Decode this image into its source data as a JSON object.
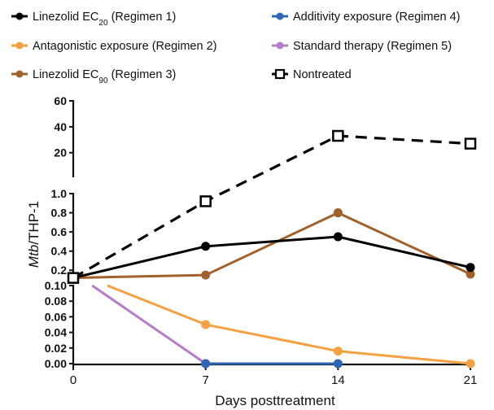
{
  "chart_data": {
    "type": "line",
    "xlabel": "Days posttreatment",
    "ylabel_italic": "Mtb",
    "ylabel_rest": "/THP-1",
    "x": [
      0,
      7,
      14,
      21
    ],
    "x_ticks": [
      "0",
      "7",
      "14",
      "21"
    ],
    "y_axis_segments": [
      {
        "range": [
          0,
          0.1
        ],
        "ticks": [
          "0.00",
          "0.02",
          "0.04",
          "0.06",
          "0.08",
          "0.10"
        ]
      },
      {
        "range": [
          0.1,
          1.0
        ],
        "ticks": [
          "0.2",
          "0.4",
          "0.6",
          "0.8",
          "1.0"
        ]
      },
      {
        "range": [
          1.0,
          60
        ],
        "ticks": [
          "20",
          "40",
          "60"
        ]
      }
    ],
    "series": [
      {
        "key": "r1",
        "name": "Linezolid EC",
        "sub": "20",
        "suffix": " (Regimen 1)",
        "color": "#000000",
        "marker": "circle",
        "dash": false,
        "x": [
          0,
          7,
          14,
          21
        ],
        "values": [
          0.12,
          0.45,
          0.55,
          0.23
        ]
      },
      {
        "key": "r2",
        "name": "Antagonistic  exposure (Regimen 2)",
        "sub": "",
        "suffix": "",
        "color": "#f5a142",
        "marker": "circle",
        "dash": false,
        "x": [
          1.8,
          7,
          14,
          21
        ],
        "values": [
          0.1,
          0.05,
          0.016,
          0.0
        ]
      },
      {
        "key": "r3",
        "name": "Linezolid EC",
        "sub": "90",
        "suffix": "  (Regimen 3)",
        "color": "#a0612a",
        "marker": "circle",
        "dash": false,
        "x": [
          0,
          7,
          14,
          21
        ],
        "values": [
          0.12,
          0.15,
          0.8,
          0.16
        ]
      },
      {
        "key": "r4",
        "name": "Additivity exposure (Regimen 4)",
        "sub": "",
        "suffix": "",
        "color": "#2e64b4",
        "marker": "circle",
        "dash": false,
        "x": [
          7,
          14
        ],
        "values": [
          0.0,
          0.0
        ]
      },
      {
        "key": "r5",
        "name": "Standard therapy (Regimen 5)",
        "sub": "",
        "suffix": "",
        "color": "#b77cc8",
        "marker": "circle",
        "dash": false,
        "x": [
          1.0,
          7
        ],
        "values": [
          0.1,
          0.0
        ]
      },
      {
        "key": "nt",
        "name": "Nontreated",
        "sub": "",
        "suffix": "",
        "color": "#000000",
        "marker": "square",
        "dash": true,
        "x": [
          0,
          7,
          14,
          21
        ],
        "values": [
          0.12,
          0.92,
          33,
          27
        ]
      }
    ],
    "grid": false,
    "legend_position": "top"
  }
}
